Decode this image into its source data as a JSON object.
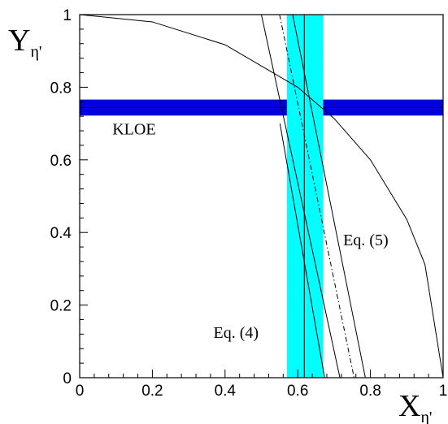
{
  "chart_data": {
    "type": "line",
    "xlabel": "X",
    "xlabel_sub": "η'",
    "ylabel": "Y",
    "ylabel_sub": "η'",
    "xlim": [
      0,
      1
    ],
    "ylim": [
      0,
      1
    ],
    "x_ticks": [
      "0",
      "0.2",
      "0.4",
      "0.6",
      "0.8",
      "1"
    ],
    "y_ticks": [
      "0",
      "0.2",
      "0.4",
      "0.6",
      "0.8",
      "1"
    ],
    "grid": false,
    "colors": {
      "kloe_band": "#0000dd",
      "vertical_band": "#00ffff",
      "lines": "#000000"
    },
    "bands": [
      {
        "name": "KLOE",
        "orientation": "horizontal",
        "center": 0.744,
        "range": [
          0.722,
          0.766
        ],
        "color": "#0000dd"
      },
      {
        "orientation": "vertical",
        "center": 0.618,
        "range": [
          0.57,
          0.67
        ],
        "color": "#00ffff"
      }
    ],
    "series": [
      {
        "style": "solid",
        "points": [
          [
            0,
            1
          ],
          [
            0.2,
            0.98
          ],
          [
            0.4,
            0.917
          ],
          [
            0.6,
            0.8
          ],
          [
            0.7,
            0.714
          ],
          [
            0.8,
            0.6
          ],
          [
            0.9,
            0.436
          ],
          [
            0.95,
            0.312
          ],
          [
            1.0,
            0.0
          ]
        ]
      },
      {
        "style": "solid",
        "points": [
          [
            0.5,
            1.0
          ],
          [
            0.716,
            0.0
          ]
        ]
      },
      {
        "style": "solid",
        "points": [
          [
            0.586,
            1.0
          ],
          [
            0.786,
            0.0
          ]
        ]
      },
      {
        "style": "dash-dot",
        "points": [
          [
            0.55,
            1.0
          ],
          [
            0.755,
            0.0
          ]
        ]
      },
      {
        "style": "solid",
        "points": [
          [
            0.618,
            1.0
          ],
          [
            0.618,
            0.0
          ]
        ]
      },
      {
        "style": "solid",
        "points": [
          [
            0.551,
            0.7
          ],
          [
            0.674,
            0.0
          ]
        ]
      }
    ],
    "annotations": [
      {
        "text": "KLOE",
        "x": 0.09,
        "y": 0.67
      },
      {
        "text": "Eq. (5)",
        "x": 0.725,
        "y": 0.365
      },
      {
        "text": "Eq. (4)",
        "x": 0.368,
        "y": 0.11
      }
    ]
  }
}
